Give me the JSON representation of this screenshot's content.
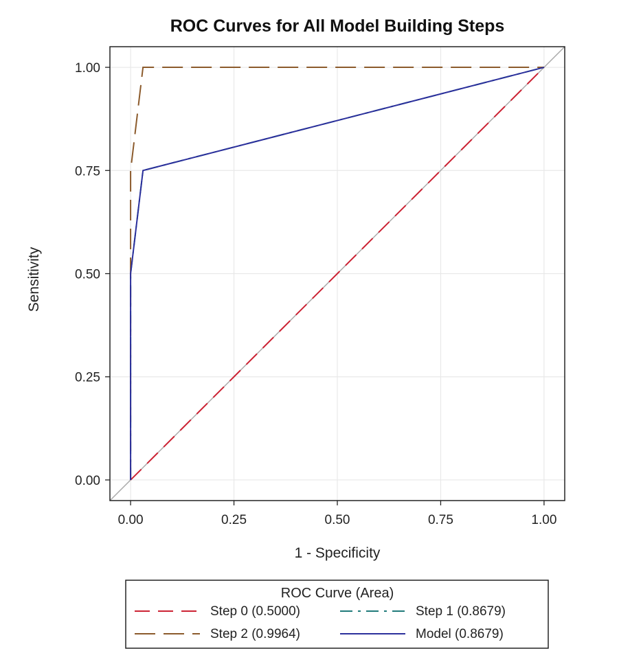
{
  "chart_data": {
    "type": "line",
    "title": "ROC Curves for All Model Building Steps",
    "xlabel": "1 - Specificity",
    "ylabel": "Sensitivity",
    "xlim": [
      -0.05,
      1.05
    ],
    "ylim": [
      -0.05,
      1.05
    ],
    "xticks": [
      "0.00",
      "0.25",
      "0.50",
      "0.75",
      "1.00"
    ],
    "yticks": [
      "0.00",
      "0.25",
      "0.50",
      "0.75",
      "1.00"
    ],
    "grid": true,
    "reference_line": {
      "from": [
        0,
        0
      ],
      "to": [
        1,
        1
      ],
      "color": "#aaaaaa"
    },
    "legend": {
      "title": "ROC Curve (Area)",
      "position": "bottom"
    },
    "series": [
      {
        "name": "Step 0",
        "area_label": "(0.5000)",
        "color": "#cc2233",
        "dash": "dashed",
        "x": [
          0,
          1
        ],
        "y": [
          0,
          1
        ]
      },
      {
        "name": "Step 1",
        "area_label": "(0.8679)",
        "color": "#1f7a7a",
        "dash": "dashdot",
        "x": [
          0,
          0,
          0.03,
          1
        ],
        "y": [
          0,
          0.5,
          0.75,
          1
        ]
      },
      {
        "name": "Step 2",
        "area_label": "(0.9964)",
        "color": "#8b5a2b",
        "dash": "longdash",
        "x": [
          0,
          0,
          0.03,
          1
        ],
        "y": [
          0,
          0.75,
          1,
          1
        ]
      },
      {
        "name": "Model",
        "area_label": "(0.8679)",
        "color": "#2b2f9c",
        "dash": "solid",
        "x": [
          0,
          0,
          0.03,
          1
        ],
        "y": [
          0,
          0.5,
          0.75,
          1
        ]
      }
    ],
    "legend_layout": [
      [
        "Step 0",
        "Step 1"
      ],
      [
        "Step 2",
        "Model"
      ]
    ]
  }
}
